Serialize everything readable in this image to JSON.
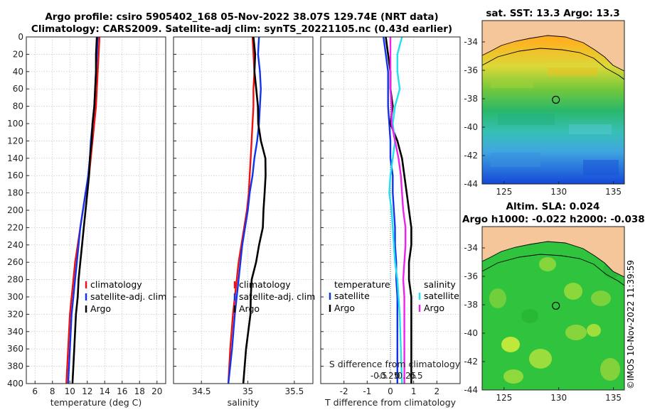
{
  "titles": {
    "line1": "Argo profile: csiro 5905402_168 05-Nov-2022 38.07S 129.74E (NRT data)",
    "line2": "Climatology: CARS2009. Satellite-adj clim: synTS_20221105.nc (0.43d earlier)"
  },
  "colors": {
    "climatology": "#ee1111",
    "satellite": "#1133ee",
    "argo": "#000000",
    "satellite_s": "#22e0ee",
    "argo_s": "#ee22ee"
  },
  "chart_data": [
    {
      "type": "line",
      "id": "temperature",
      "xlabel": "temperature (deg C)",
      "xlim": [
        5,
        21
      ],
      "ylim": [
        0,
        400
      ],
      "xticks": [
        6,
        8,
        10,
        12,
        14,
        16,
        18,
        20
      ],
      "yticks": [
        0,
        20,
        40,
        60,
        80,
        100,
        120,
        140,
        160,
        180,
        200,
        220,
        240,
        260,
        280,
        300,
        320,
        340,
        360,
        380,
        400
      ],
      "legend": {
        "position": "lower-right",
        "entries": [
          "climatology",
          "satellite-adj. clim",
          "Argo"
        ]
      },
      "series": [
        {
          "name": "climatology",
          "color": "#ee1111",
          "x": [
            13.4,
            13.3,
            13.2,
            13.1,
            13.0,
            12.8,
            12.6,
            12.4,
            12.2,
            11.8,
            11.5,
            11.2,
            10.9,
            10.6,
            10.4,
            10.2,
            10.0,
            9.8,
            9.6
          ],
          "y": [
            0,
            20,
            40,
            60,
            80,
            100,
            120,
            140,
            160,
            180,
            200,
            220,
            240,
            260,
            280,
            300,
            320,
            360,
            400
          ]
        },
        {
          "name": "satellite-adj. clim",
          "color": "#1133ee",
          "x": [
            13.2,
            13.1,
            13.0,
            12.9,
            12.8,
            12.6,
            12.4,
            12.3,
            12.1,
            11.8,
            11.5,
            11.2,
            11.0,
            10.8,
            10.6,
            10.4,
            10.2,
            10.0,
            9.8
          ],
          "y": [
            0,
            20,
            40,
            60,
            80,
            100,
            120,
            140,
            160,
            180,
            200,
            220,
            240,
            260,
            280,
            300,
            320,
            360,
            400
          ]
        },
        {
          "name": "Argo",
          "color": "#000000",
          "x": [
            13.1,
            13.0,
            13.0,
            12.9,
            12.8,
            12.6,
            12.5,
            12.3,
            12.2,
            12.0,
            11.8,
            11.6,
            11.4,
            11.2,
            11.0,
            10.9,
            10.7,
            10.5,
            10.3
          ],
          "y": [
            0,
            20,
            40,
            60,
            80,
            100,
            120,
            140,
            160,
            180,
            200,
            220,
            240,
            260,
            280,
            300,
            320,
            360,
            400
          ]
        }
      ]
    },
    {
      "type": "line",
      "id": "salinity",
      "xlabel": "salinity",
      "xlim": [
        34.2,
        35.7
      ],
      "ylim": [
        0,
        400
      ],
      "xticks": [
        34.5,
        35,
        35.5
      ],
      "legend": {
        "position": "lower-right",
        "entries": [
          "climatology",
          "satellite-adj. clim",
          "Argo"
        ]
      },
      "series": [
        {
          "name": "climatology",
          "color": "#ee1111",
          "x": [
            35.05,
            35.06,
            35.07,
            35.06,
            35.06,
            35.05,
            35.04,
            35.03,
            35.02,
            35.01,
            34.99,
            34.96,
            34.93,
            34.9,
            34.88,
            34.86,
            34.84,
            34.81,
            34.79
          ],
          "y": [
            0,
            20,
            40,
            60,
            80,
            100,
            120,
            140,
            160,
            180,
            200,
            220,
            240,
            260,
            280,
            300,
            320,
            360,
            400
          ]
        },
        {
          "name": "satellite-adj. clim",
          "color": "#1133ee",
          "x": [
            35.12,
            35.11,
            35.13,
            35.14,
            35.13,
            35.12,
            35.1,
            35.07,
            35.05,
            35.02,
            35.0,
            34.97,
            34.94,
            34.92,
            34.9,
            34.88,
            34.86,
            34.83,
            34.79
          ],
          "y": [
            0,
            20,
            40,
            60,
            80,
            100,
            120,
            140,
            160,
            180,
            200,
            220,
            240,
            260,
            280,
            300,
            320,
            360,
            400
          ]
        },
        {
          "name": "Argo",
          "color": "#000000",
          "x": [
            35.06,
            35.07,
            35.08,
            35.09,
            35.1,
            35.12,
            35.14,
            35.18,
            35.2,
            35.18,
            35.16,
            35.17,
            35.12,
            35.08,
            35.05,
            35.03,
            35.02,
            34.99,
            34.95
          ],
          "y": [
            0,
            20,
            40,
            60,
            80,
            100,
            120,
            140,
            160,
            180,
            200,
            220,
            240,
            260,
            280,
            300,
            320,
            360,
            400
          ]
        }
      ]
    },
    {
      "type": "line",
      "id": "difference",
      "xlabel": "T difference from climatology",
      "xlabel2": "S difference from climatology",
      "xlim": [
        -3,
        3
      ],
      "ylim": [
        0,
        400
      ],
      "xticks": [
        -2,
        -1,
        0,
        1,
        2
      ],
      "xtick_labels": [
        "-2",
        "-1",
        "0",
        "1",
        "2"
      ],
      "s_xticks": [
        -1,
        -0.5,
        0,
        0.5,
        1
      ],
      "s_xtick_labels": [
        "-0.5",
        "-0.25",
        "0",
        "0.25",
        "0.5"
      ],
      "legend_t": {
        "title": "temperature",
        "entries": [
          "satellite",
          "Argo"
        ]
      },
      "legend_s": {
        "title": "salinity",
        "entries": [
          "satellite",
          "Argo"
        ]
      },
      "series": [
        {
          "name": "temperature satellite",
          "color": "#1133ee",
          "x": [
            -0.3,
            -0.2,
            -0.1,
            -0.1,
            -0.1,
            -0.05,
            0.0,
            0.0,
            0.1,
            0.1,
            0.15,
            0.2,
            0.2,
            0.25,
            0.25,
            0.3,
            0.3,
            0.3,
            0.3
          ],
          "y": [
            0,
            20,
            40,
            60,
            80,
            100,
            120,
            140,
            160,
            180,
            200,
            220,
            240,
            260,
            280,
            300,
            320,
            360,
            400
          ]
        },
        {
          "name": "temperature Argo",
          "color": "#000000",
          "x": [
            -0.2,
            -0.1,
            0.0,
            0.0,
            0.1,
            0.0,
            0.3,
            0.5,
            0.6,
            0.7,
            0.8,
            0.9,
            0.9,
            0.8,
            0.8,
            0.9,
            0.9,
            0.9,
            0.9
          ],
          "y": [
            0,
            20,
            40,
            60,
            80,
            100,
            120,
            140,
            160,
            180,
            200,
            220,
            240,
            260,
            280,
            300,
            320,
            360,
            400
          ]
        },
        {
          "name": "salinity satellite",
          "color": "#22e0ee",
          "x": [
            0.5,
            0.3,
            0.3,
            0.4,
            0.2,
            0.1,
            0.2,
            0.1,
            0.0,
            -0.05,
            0.05,
            0.1,
            0.15,
            0.2,
            0.3,
            0.35,
            0.4,
            0.45,
            0.5
          ],
          "y": [
            0,
            20,
            40,
            60,
            80,
            100,
            120,
            140,
            160,
            180,
            200,
            220,
            240,
            260,
            280,
            300,
            320,
            360,
            400
          ]
        },
        {
          "name": "salinity Argo",
          "color": "#ee22ee",
          "x": [
            0.0,
            0.0,
            0.0,
            0.0,
            0.05,
            0.05,
            0.2,
            0.35,
            0.45,
            0.5,
            0.55,
            0.65,
            0.65,
            0.6,
            0.55,
            0.6,
            0.6,
            0.6,
            0.6
          ],
          "y": [
            0,
            20,
            40,
            60,
            80,
            100,
            120,
            140,
            160,
            180,
            200,
            220,
            240,
            260,
            280,
            300,
            320,
            360,
            400
          ]
        }
      ]
    },
    {
      "type": "heatmap",
      "id": "sst_map",
      "title": "sat. SST: 13.3 Argo: 13.3",
      "xlim": [
        123,
        136
      ],
      "ylim": [
        -44,
        -32.5
      ],
      "xticks": [
        125,
        130,
        135
      ],
      "yticks": [
        -34,
        -36,
        -38,
        -40,
        -42,
        -44
      ],
      "argo_position": [
        129.74,
        -38.07
      ]
    },
    {
      "type": "heatmap",
      "id": "sla_map",
      "title": "Altim. SLA: 0.024",
      "subtitle": "Argo h1000: -0.022 h2000: -0.038",
      "xlim": [
        123,
        136
      ],
      "ylim": [
        -44,
        -32.5
      ],
      "xticks": [
        125,
        130,
        135
      ],
      "yticks": [
        -34,
        -36,
        -38,
        -40,
        -42,
        -44
      ],
      "argo_position": [
        129.74,
        -38.07
      ]
    }
  ],
  "copyright": "©IMOS 10-Nov-2022 11:39:59"
}
